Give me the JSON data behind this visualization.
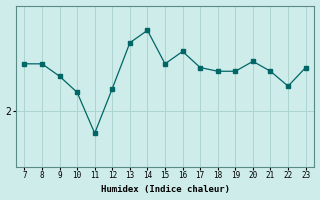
{
  "x": [
    7,
    8,
    9,
    10,
    11,
    12,
    13,
    14,
    15,
    16,
    17,
    18,
    19,
    20,
    21,
    22,
    23
  ],
  "y": [
    2.38,
    2.38,
    2.28,
    2.15,
    1.82,
    2.18,
    2.55,
    2.65,
    2.38,
    2.48,
    2.35,
    2.32,
    2.32,
    2.4,
    2.32,
    2.2,
    2.35
  ],
  "ytick_labels": [
    "2"
  ],
  "ytick_positions": [
    2.0
  ],
  "xlabel": "Humidex (Indice chaleur)",
  "bg_color": "#ceecea",
  "line_color": "#006666",
  "grid_color": "#aed4d0",
  "axis_color": "#5a8a85"
}
